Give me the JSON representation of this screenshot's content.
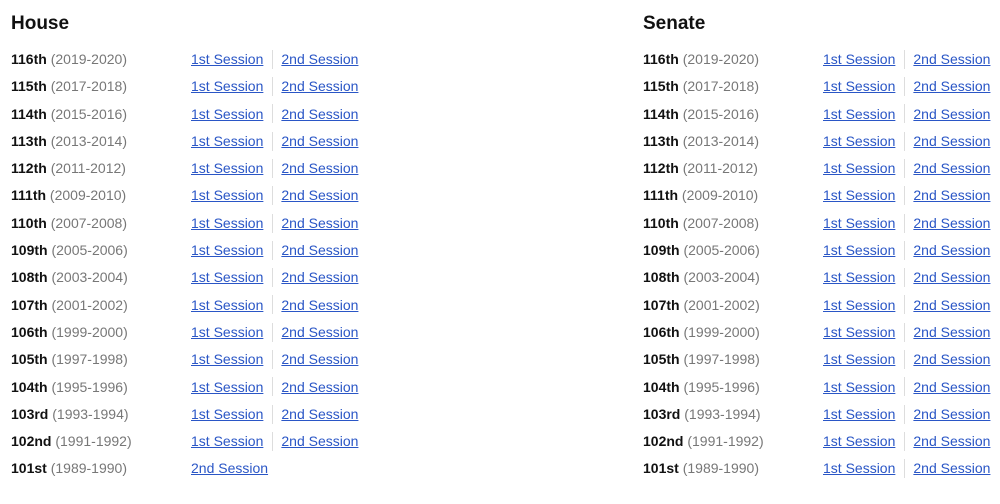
{
  "house": {
    "title": "House",
    "rows": [
      {
        "congress": "116th",
        "years": "(2019-2020)",
        "sessions": [
          "1st Session",
          "2nd Session"
        ]
      },
      {
        "congress": "115th",
        "years": "(2017-2018)",
        "sessions": [
          "1st Session",
          "2nd Session"
        ]
      },
      {
        "congress": "114th",
        "years": "(2015-2016)",
        "sessions": [
          "1st Session",
          "2nd Session"
        ]
      },
      {
        "congress": "113th",
        "years": "(2013-2014)",
        "sessions": [
          "1st Session",
          "2nd Session"
        ]
      },
      {
        "congress": "112th",
        "years": "(2011-2012)",
        "sessions": [
          "1st Session",
          "2nd Session"
        ]
      },
      {
        "congress": "111th",
        "years": "(2009-2010)",
        "sessions": [
          "1st Session",
          "2nd Session"
        ]
      },
      {
        "congress": "110th",
        "years": "(2007-2008)",
        "sessions": [
          "1st Session",
          "2nd Session"
        ]
      },
      {
        "congress": "109th",
        "years": "(2005-2006)",
        "sessions": [
          "1st Session",
          "2nd Session"
        ]
      },
      {
        "congress": "108th",
        "years": "(2003-2004)",
        "sessions": [
          "1st Session",
          "2nd Session"
        ]
      },
      {
        "congress": "107th",
        "years": "(2001-2002)",
        "sessions": [
          "1st Session",
          "2nd Session"
        ]
      },
      {
        "congress": "106th",
        "years": "(1999-2000)",
        "sessions": [
          "1st Session",
          "2nd Session"
        ]
      },
      {
        "congress": "105th",
        "years": "(1997-1998)",
        "sessions": [
          "1st Session",
          "2nd Session"
        ]
      },
      {
        "congress": "104th",
        "years": "(1995-1996)",
        "sessions": [
          "1st Session",
          "2nd Session"
        ]
      },
      {
        "congress": "103rd",
        "years": "(1993-1994)",
        "sessions": [
          "1st Session",
          "2nd Session"
        ]
      },
      {
        "congress": "102nd",
        "years": "(1991-1992)",
        "sessions": [
          "1st Session",
          "2nd Session"
        ]
      },
      {
        "congress": "101st",
        "years": "(1989-1990)",
        "sessions": [
          "2nd Session"
        ]
      }
    ]
  },
  "senate": {
    "title": "Senate",
    "rows": [
      {
        "congress": "116th",
        "years": "(2019-2020)",
        "sessions": [
          "1st Session",
          "2nd Session"
        ]
      },
      {
        "congress": "115th",
        "years": "(2017-2018)",
        "sessions": [
          "1st Session",
          "2nd Session"
        ]
      },
      {
        "congress": "114th",
        "years": "(2015-2016)",
        "sessions": [
          "1st Session",
          "2nd Session"
        ]
      },
      {
        "congress": "113th",
        "years": "(2013-2014)",
        "sessions": [
          "1st Session",
          "2nd Session"
        ]
      },
      {
        "congress": "112th",
        "years": "(2011-2012)",
        "sessions": [
          "1st Session",
          "2nd Session"
        ]
      },
      {
        "congress": "111th",
        "years": "(2009-2010)",
        "sessions": [
          "1st Session",
          "2nd Session"
        ]
      },
      {
        "congress": "110th",
        "years": "(2007-2008)",
        "sessions": [
          "1st Session",
          "2nd Session"
        ]
      },
      {
        "congress": "109th",
        "years": "(2005-2006)",
        "sessions": [
          "1st Session",
          "2nd Session"
        ]
      },
      {
        "congress": "108th",
        "years": "(2003-2004)",
        "sessions": [
          "1st Session",
          "2nd Session"
        ]
      },
      {
        "congress": "107th",
        "years": "(2001-2002)",
        "sessions": [
          "1st Session",
          "2nd Session"
        ]
      },
      {
        "congress": "106th",
        "years": "(1999-2000)",
        "sessions": [
          "1st Session",
          "2nd Session"
        ]
      },
      {
        "congress": "105th",
        "years": "(1997-1998)",
        "sessions": [
          "1st Session",
          "2nd Session"
        ]
      },
      {
        "congress": "104th",
        "years": "(1995-1996)",
        "sessions": [
          "1st Session",
          "2nd Session"
        ]
      },
      {
        "congress": "103rd",
        "years": "(1993-1994)",
        "sessions": [
          "1st Session",
          "2nd Session"
        ]
      },
      {
        "congress": "102nd",
        "years": "(1991-1992)",
        "sessions": [
          "1st Session",
          "2nd Session"
        ]
      },
      {
        "congress": "101st",
        "years": "(1989-1990)",
        "sessions": [
          "1st Session",
          "2nd Session"
        ]
      }
    ]
  }
}
